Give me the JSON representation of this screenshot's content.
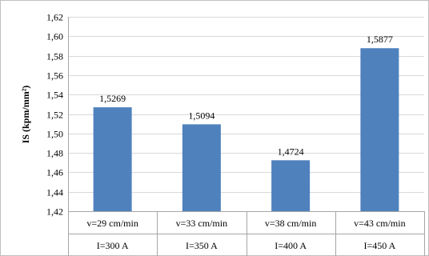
{
  "chart_data": {
    "type": "bar",
    "title": "",
    "xlabel": "",
    "ylabel": "IS (kpm/mm²)",
    "ylim": [
      1.42,
      1.62
    ],
    "yticks": [
      "1,42",
      "1,44",
      "1,46",
      "1,48",
      "1,50",
      "1,52",
      "1,54",
      "1,56",
      "1,58",
      "1,60",
      "1,62"
    ],
    "grid": true,
    "legend": "none",
    "bar_color": "#4f81bd",
    "categories": [
      {
        "line1": "v=29 cm/min",
        "line2": "I=300 A"
      },
      {
        "line1": "v=33 cm/min",
        "line2": "I=350 A"
      },
      {
        "line1": "v=38 cm/min",
        "line2": "I=400 A"
      },
      {
        "line1": "v=43 cm/min",
        "line2": "I=450 A"
      }
    ],
    "values": [
      1.5269,
      1.5094,
      1.4724,
      1.5877
    ],
    "value_labels": [
      "1,5269",
      "1,5094",
      "1,4724",
      "1,5877"
    ]
  }
}
